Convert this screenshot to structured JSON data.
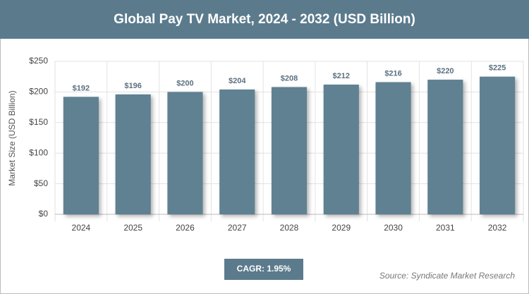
{
  "chart_data": {
    "type": "bar",
    "title": "Global Pay TV Market, 2024 - 2032 (USD Billion)",
    "y_label": "Market Size (USD Billion)",
    "categories": [
      "2024",
      "2025",
      "2026",
      "2027",
      "2028",
      "2029",
      "2030",
      "2031",
      "2032"
    ],
    "values": [
      192,
      196,
      200,
      204,
      208,
      212,
      216,
      220,
      225
    ],
    "value_labels": [
      "$192",
      "$196",
      "$200",
      "$204",
      "$208",
      "$212",
      "$216",
      "$220",
      "$225"
    ],
    "color": "#5f8192",
    "ylim": [
      0,
      250
    ],
    "yticks": [
      {
        "value": 0,
        "label": "$0"
      },
      {
        "value": 50,
        "label": "$50"
      },
      {
        "value": 100,
        "label": "$100"
      },
      {
        "value": 150,
        "label": "$150"
      },
      {
        "value": 200,
        "label": "$200"
      },
      {
        "value": 250,
        "label": "$250"
      }
    ],
    "grid": true,
    "cagr": "CAGR: 1.95%",
    "source": "Source: Syndicate Market Research"
  }
}
